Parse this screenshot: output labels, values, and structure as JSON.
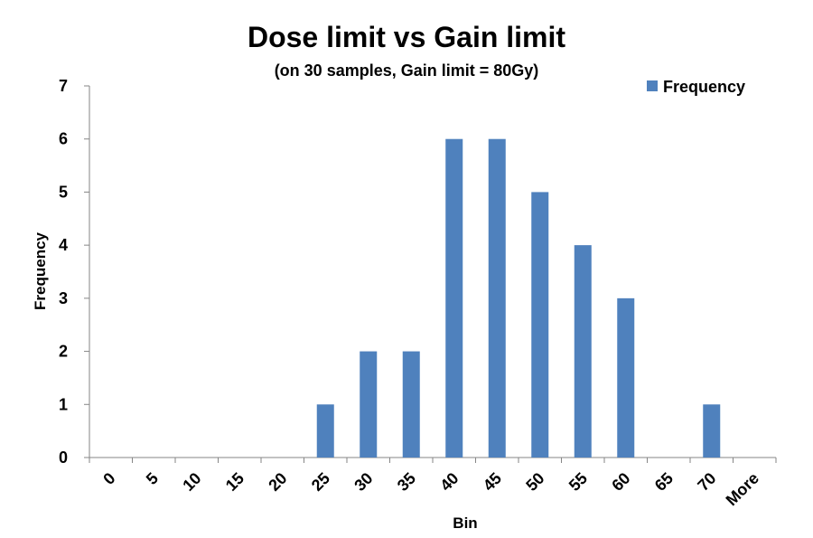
{
  "chart_data": {
    "type": "bar",
    "title": "Dose limit vs Gain limit",
    "subtitle": "(on 30 samples, Gain limit = 80Gy)",
    "xlabel": "Bin",
    "ylabel": "Frequency",
    "categories": [
      "0",
      "5",
      "10",
      "15",
      "20",
      "25",
      "30",
      "35",
      "40",
      "45",
      "50",
      "55",
      "60",
      "65",
      "70",
      "More"
    ],
    "series": [
      {
        "name": "Frequency",
        "values": [
          0,
          0,
          0,
          0,
          0,
          1,
          2,
          2,
          6,
          6,
          5,
          4,
          3,
          0,
          1,
          0
        ],
        "color": "#4F81BD"
      }
    ],
    "ylim": [
      0,
      7
    ],
    "yticks": [
      "0",
      "1",
      "2",
      "3",
      "4",
      "5",
      "6",
      "7"
    ],
    "grid": false,
    "legend_position": "top-right"
  }
}
